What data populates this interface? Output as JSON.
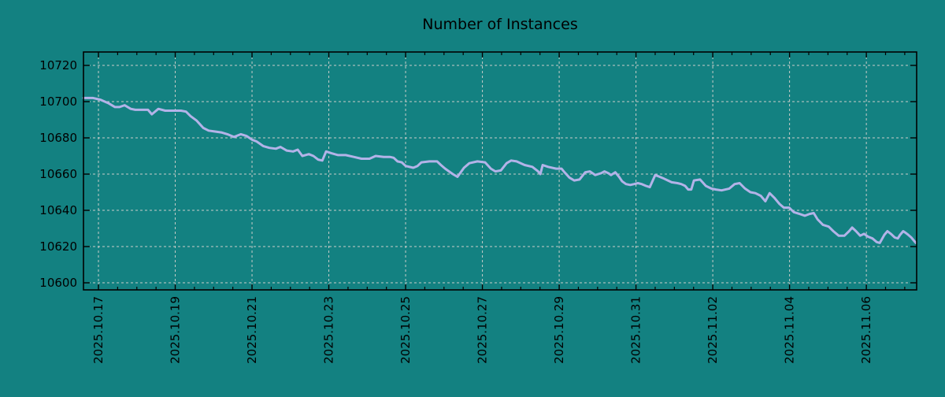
{
  "colors": {
    "background": "#138181",
    "line": "#b3b3e8",
    "grid": "#c9cdc9",
    "axis": "#000000",
    "text": "#000000"
  },
  "chart_data": {
    "type": "line",
    "title": "Number of Instances",
    "xlabel": "",
    "ylabel": "",
    "grid": true,
    "legend": "none",
    "y_ticks": [
      10600,
      10620,
      10640,
      10660,
      10680,
      10700,
      10720
    ],
    "ylim": [
      10596.1,
      10727.4
    ],
    "x_major_tick_days": [
      0,
      2,
      4,
      6,
      8,
      10,
      12,
      14,
      16,
      18,
      20
    ],
    "x_tick_labels": [
      "2025.10.17",
      "2025.10.19",
      "2025.10.21",
      "2025.10.23",
      "2025.10.25",
      "2025.10.27",
      "2025.10.29",
      "2025.10.31",
      "2025.11.02",
      "2025.11.04",
      "2025.11.06"
    ],
    "x_minor_tick_step_days": 0.5,
    "xlim_days": [
      -0.39,
      21.31
    ],
    "series": [
      {
        "name": "instances",
        "points": [
          [
            -0.39,
            10702
          ],
          [
            -0.14,
            10702
          ],
          [
            0.06,
            10701
          ],
          [
            0.27,
            10699
          ],
          [
            0.43,
            10697
          ],
          [
            0.55,
            10697
          ],
          [
            0.68,
            10698
          ],
          [
            0.84,
            10696
          ],
          [
            0.96,
            10695.5
          ],
          [
            1.17,
            10695.5
          ],
          [
            1.29,
            10695.5
          ],
          [
            1.39,
            10693
          ],
          [
            1.56,
            10696
          ],
          [
            1.74,
            10695
          ],
          [
            1.95,
            10695
          ],
          [
            2.15,
            10695
          ],
          [
            2.28,
            10694.5
          ],
          [
            2.4,
            10692
          ],
          [
            2.56,
            10689.5
          ],
          [
            2.73,
            10685.5
          ],
          [
            2.87,
            10684
          ],
          [
            3.04,
            10683.5
          ],
          [
            3.2,
            10683
          ],
          [
            3.36,
            10682
          ],
          [
            3.53,
            10680.5
          ],
          [
            3.71,
            10682
          ],
          [
            3.86,
            10681
          ],
          [
            4.0,
            10679
          ],
          [
            4.12,
            10678
          ],
          [
            4.29,
            10675.5
          ],
          [
            4.45,
            10674.5
          ],
          [
            4.62,
            10674
          ],
          [
            4.74,
            10675
          ],
          [
            4.9,
            10673
          ],
          [
            5.07,
            10672.5
          ],
          [
            5.19,
            10673.5
          ],
          [
            5.31,
            10670
          ],
          [
            5.48,
            10671
          ],
          [
            5.6,
            10670
          ],
          [
            5.72,
            10668
          ],
          [
            5.83,
            10667.5
          ],
          [
            5.93,
            10672.5
          ],
          [
            6.07,
            10671.5
          ],
          [
            6.24,
            10670.5
          ],
          [
            6.44,
            10670.5
          ],
          [
            6.65,
            10669.5
          ],
          [
            6.85,
            10668.5
          ],
          [
            7.06,
            10668.5
          ],
          [
            7.22,
            10670
          ],
          [
            7.43,
            10669.5
          ],
          [
            7.59,
            10669.5
          ],
          [
            7.69,
            10669
          ],
          [
            7.79,
            10667
          ],
          [
            7.9,
            10666.5
          ],
          [
            8.0,
            10664.5
          ],
          [
            8.2,
            10663.5
          ],
          [
            8.31,
            10664.5
          ],
          [
            8.41,
            10666.5
          ],
          [
            8.62,
            10667
          ],
          [
            8.82,
            10667
          ],
          [
            8.92,
            10665
          ],
          [
            9.03,
            10663
          ],
          [
            9.13,
            10661.5
          ],
          [
            9.23,
            10660
          ],
          [
            9.35,
            10658.5
          ],
          [
            9.52,
            10663.5
          ],
          [
            9.66,
            10666
          ],
          [
            9.87,
            10667
          ],
          [
            10.07,
            10666.5
          ],
          [
            10.22,
            10663
          ],
          [
            10.34,
            10661.5
          ],
          [
            10.48,
            10662
          ],
          [
            10.63,
            10666
          ],
          [
            10.75,
            10667.5
          ],
          [
            10.89,
            10667
          ],
          [
            11.1,
            10665
          ],
          [
            11.3,
            10664
          ],
          [
            11.45,
            10661.5
          ],
          [
            11.51,
            10660
          ],
          [
            11.57,
            10665
          ],
          [
            11.71,
            10664
          ],
          [
            11.92,
            10663
          ],
          [
            12.06,
            10663
          ],
          [
            12.12,
            10661.5
          ],
          [
            12.27,
            10658
          ],
          [
            12.39,
            10656.5
          ],
          [
            12.53,
            10657
          ],
          [
            12.68,
            10661
          ],
          [
            12.8,
            10661.5
          ],
          [
            12.94,
            10659.5
          ],
          [
            13.09,
            10660.5
          ],
          [
            13.18,
            10661.5
          ],
          [
            13.28,
            10660.5
          ],
          [
            13.35,
            10659.5
          ],
          [
            13.46,
            10661
          ],
          [
            13.56,
            10658.5
          ],
          [
            13.64,
            10656
          ],
          [
            13.74,
            10654.5
          ],
          [
            13.85,
            10654
          ],
          [
            13.95,
            10654.5
          ],
          [
            14.05,
            10655
          ],
          [
            14.15,
            10654.5
          ],
          [
            14.26,
            10653.5
          ],
          [
            14.36,
            10652.8
          ],
          [
            14.5,
            10659.5
          ],
          [
            14.62,
            10658.5
          ],
          [
            14.73,
            10657.5
          ],
          [
            14.83,
            10656.5
          ],
          [
            14.93,
            10655.5
          ],
          [
            15.08,
            10655
          ],
          [
            15.18,
            10654.5
          ],
          [
            15.28,
            10653.5
          ],
          [
            15.36,
            10651.5
          ],
          [
            15.44,
            10651.5
          ],
          [
            15.51,
            10656.5
          ],
          [
            15.67,
            10657
          ],
          [
            15.82,
            10653.5
          ],
          [
            15.96,
            10652
          ],
          [
            16.08,
            10651.5
          ],
          [
            16.23,
            10651
          ],
          [
            16.43,
            10652
          ],
          [
            16.57,
            10654.5
          ],
          [
            16.7,
            10655
          ],
          [
            16.84,
            10652
          ],
          [
            16.98,
            10650
          ],
          [
            17.11,
            10649.5
          ],
          [
            17.25,
            10648
          ],
          [
            17.37,
            10645
          ],
          [
            17.48,
            10649.5
          ],
          [
            17.6,
            10647
          ],
          [
            17.74,
            10643.5
          ],
          [
            17.85,
            10641.5
          ],
          [
            17.99,
            10641.5
          ],
          [
            18.11,
            10639
          ],
          [
            18.26,
            10638
          ],
          [
            18.4,
            10637
          ],
          [
            18.52,
            10638
          ],
          [
            18.63,
            10638.5
          ],
          [
            18.73,
            10635
          ],
          [
            18.87,
            10632
          ],
          [
            19.02,
            10631
          ],
          [
            19.14,
            10628.5
          ],
          [
            19.28,
            10626
          ],
          [
            19.43,
            10626
          ],
          [
            19.55,
            10628.5
          ],
          [
            19.63,
            10630.5
          ],
          [
            19.73,
            10628.5
          ],
          [
            19.84,
            10626
          ],
          [
            19.94,
            10627
          ],
          [
            20.04,
            10625.5
          ],
          [
            20.16,
            10624.5
          ],
          [
            20.27,
            10622.5
          ],
          [
            20.35,
            10622
          ],
          [
            20.47,
            10626.5
          ],
          [
            20.55,
            10628.5
          ],
          [
            20.64,
            10627
          ],
          [
            20.74,
            10625
          ],
          [
            20.82,
            10624.5
          ],
          [
            20.88,
            10626.5
          ],
          [
            20.96,
            10628.5
          ],
          [
            21.03,
            10627.5
          ],
          [
            21.09,
            10626.5
          ],
          [
            21.17,
            10625
          ],
          [
            21.23,
            10623.5
          ],
          [
            21.29,
            10622
          ]
        ]
      }
    ]
  }
}
